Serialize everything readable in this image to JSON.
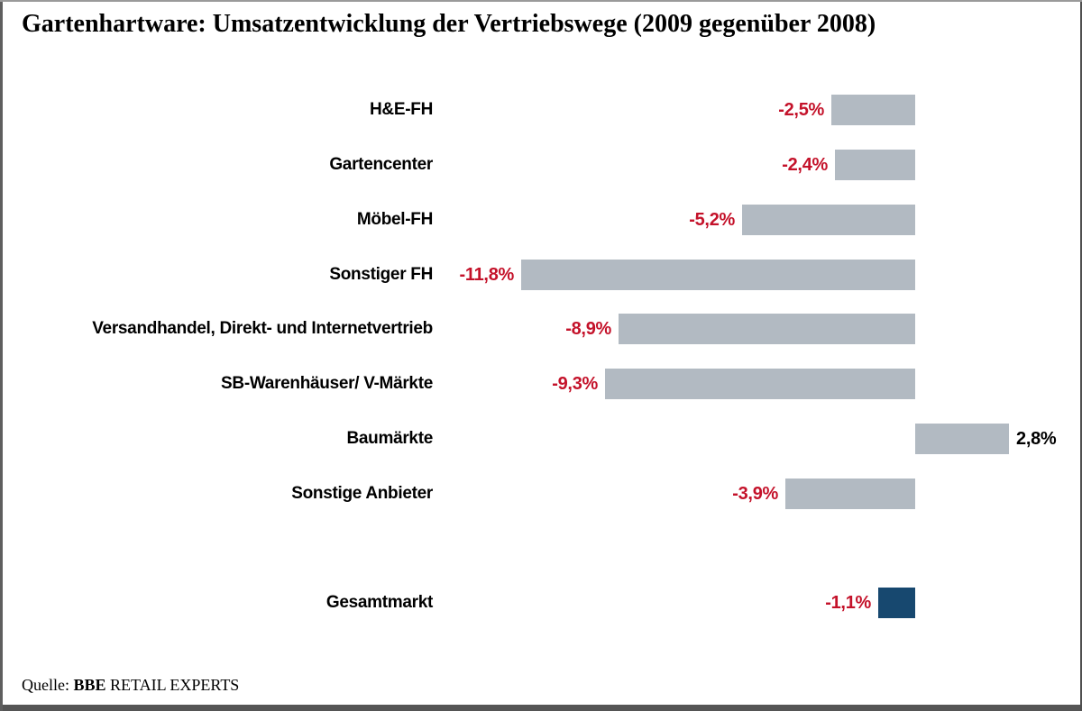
{
  "page": {
    "title": "Gartenhartware: Umsatzentwicklung der Vertriebswege (2009 gegenüber 2008)",
    "source": {
      "prefix": "Quelle: ",
      "brand": "BBE",
      "suffix": " RETAIL EXPERTS"
    }
  },
  "chart_data": {
    "type": "bar",
    "orientation": "horizontal",
    "title": "Gartenhartware: Umsatzentwicklung der Vertriebswege (2009 gegenüber 2008)",
    "categories": [
      "H&E-FH",
      "Gartencenter",
      "Möbel-FH",
      "Sonstiger FH",
      "Versandhandel, Direkt- und Internetvertrieb",
      "SB-Warenhäuser/ V-Märkte",
      "Baumärkte",
      "Sonstige Anbieter",
      "Gesamtmarkt"
    ],
    "values": [
      -2.5,
      -2.4,
      -5.2,
      -11.8,
      -8.9,
      -9.3,
      2.8,
      -3.9,
      -1.1
    ],
    "value_labels": [
      "-2,5%",
      "-2,4%",
      "-5,2%",
      "-11,8%",
      "-8,9%",
      "-9,3%",
      "2,8%",
      "-3,9%",
      "-1,1%"
    ],
    "unit": "%",
    "total_index": 8,
    "xlim": [
      -12,
      3
    ],
    "grid": false,
    "legend": "none",
    "colors": {
      "bar_fill": "#b2bac2",
      "total_bar_fill": "#17486f",
      "negative_label": "#c4122a",
      "positive_label": "#000000"
    },
    "source": "Quelle: BBE RETAIL EXPERTS"
  }
}
